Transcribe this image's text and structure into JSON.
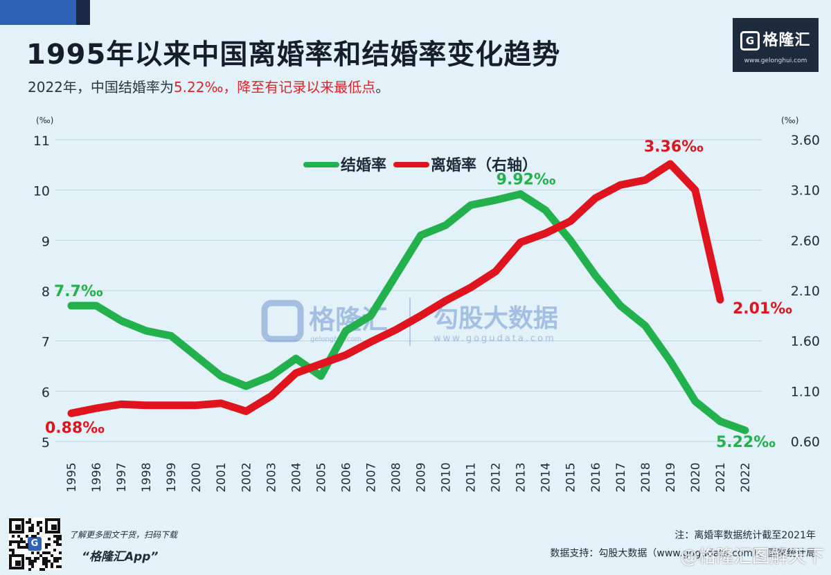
{
  "header": {
    "title": "1995年以来中国离婚率和结婚率变化趋势",
    "subtitle_prefix": "2022年，中国结婚率为",
    "subtitle_highlight": "5.22‰，降至有记录以来最低点",
    "subtitle_suffix": "。"
  },
  "brand": {
    "name": "格隆汇",
    "icon_letter": "G",
    "url": "www.gelonghui.com"
  },
  "watermark": {
    "left_name": "格隆汇",
    "left_sub": "gelonghui.com",
    "right_name": "勾股大数据",
    "right_url": "www.gogudata.com"
  },
  "footer": {
    "note": "注：离婚率数据统计截至2021年",
    "source": "数据支持：勾股大数据（www.gogudata.com）、国家统计局",
    "promo_line": "了解更多图文干货，扫码下载",
    "promo_app": "“格隆汇App”",
    "weibo_mark": "@格隆汇图解天下"
  },
  "colors": {
    "marriage": "#22b14c",
    "divorce": "#e0141e",
    "grid": "#b9d2df",
    "background": "#e3f1f8"
  },
  "chart_data": {
    "type": "line",
    "x": [
      1995,
      1996,
      1997,
      1998,
      1999,
      2000,
      2001,
      2002,
      2003,
      2004,
      2005,
      2006,
      2007,
      2008,
      2009,
      2010,
      2011,
      2012,
      2013,
      2014,
      2015,
      2016,
      2017,
      2018,
      2019,
      2020,
      2021,
      2022
    ],
    "y_left": {
      "unit": "(‰)",
      "min": 5,
      "max": 11,
      "ticks": [
        "5",
        "6",
        "7",
        "8",
        "9",
        "10",
        "11"
      ]
    },
    "y_right": {
      "unit": "(‰)",
      "min": 0.6,
      "max": 3.6,
      "ticks": [
        "0.60",
        "1.10",
        "1.60",
        "2.10",
        "2.60",
        "3.10",
        "3.60"
      ]
    },
    "grid": true,
    "legend_position": "top-center",
    "series": [
      {
        "name": "结婚率",
        "axis": "left",
        "color": "#22b14c",
        "values": [
          7.7,
          7.7,
          7.4,
          7.2,
          7.1,
          6.7,
          6.3,
          6.1,
          6.3,
          6.65,
          6.3,
          7.2,
          7.5,
          8.3,
          9.1,
          9.3,
          9.7,
          9.8,
          9.92,
          9.6,
          9.0,
          8.3,
          7.7,
          7.3,
          6.6,
          5.8,
          5.4,
          5.22
        ]
      },
      {
        "name": "离婚率（右轴）",
        "axis": "right",
        "color": "#e0141e",
        "values": [
          0.88,
          0.93,
          0.97,
          0.96,
          0.96,
          0.96,
          0.98,
          0.9,
          1.05,
          1.28,
          1.37,
          1.46,
          1.59,
          1.71,
          1.85,
          2.0,
          2.13,
          2.29,
          2.58,
          2.67,
          2.79,
          3.02,
          3.15,
          3.2,
          3.36,
          3.1,
          2.01,
          null
        ]
      }
    ],
    "annotations": [
      {
        "text": "7.7‰",
        "series": 0,
        "index": 0,
        "color": "#22b14c"
      },
      {
        "text": "9.92‰",
        "series": 0,
        "index": 18,
        "color": "#22b14c"
      },
      {
        "text": "5.22‰",
        "series": 0,
        "index": 27,
        "color": "#22b14c"
      },
      {
        "text": "0.88‰",
        "series": 1,
        "index": 0,
        "color": "#e0141e"
      },
      {
        "text": "3.36‰",
        "series": 1,
        "index": 24,
        "color": "#e0141e"
      },
      {
        "text": "2.01‰",
        "series": 1,
        "index": 26,
        "color": "#e0141e"
      }
    ]
  }
}
